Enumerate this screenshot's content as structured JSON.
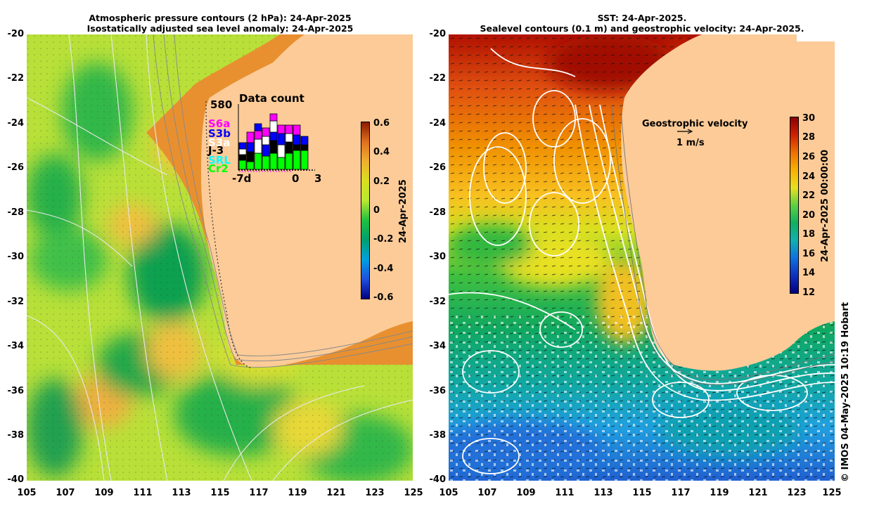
{
  "left_panel": {
    "title_line1": "Atmospheric pressure contours (2 hPa): 24-Apr-2025",
    "title_line2": "Isostatically adjusted sea level anomaly: 24-Apr-2025",
    "colorbar": {
      "ticks": [
        "0.6",
        "0.4",
        "0.2",
        "0",
        "-0.2",
        "-0.4",
        "-0.6"
      ],
      "label": "24-Apr-2025",
      "colors": [
        "#8b1a00",
        "#e07020",
        "#f0b030",
        "#d8e020",
        "#b8e830",
        "#20c040",
        "#00a070",
        "#00a0e0",
        "#2050e0",
        "#000080"
      ]
    },
    "inset": {
      "title": "Data count",
      "max_label": "580",
      "x_labels": [
        "-7d",
        "0",
        "3"
      ],
      "satellites": [
        {
          "name": "S6a",
          "color": "#ff00ff"
        },
        {
          "name": "S3b",
          "color": "#0000ff"
        },
        {
          "name": "S3a",
          "color": "#ffffff"
        },
        {
          "name": "J-3",
          "color": "#000000"
        },
        {
          "name": "SRL",
          "color": "#00ffff"
        },
        {
          "name": "Cr2",
          "color": "#00ff00"
        }
      ]
    }
  },
  "right_panel": {
    "title_line1": "SST: 24-Apr-2025.",
    "title_line2": "Sealevel contours (0.1 m) and geostrophic velocity: 24-Apr-2025.",
    "colorbar": {
      "ticks": [
        "30",
        "28",
        "26",
        "24",
        "22",
        "20",
        "18",
        "16",
        "14",
        "12"
      ],
      "label": "24-Apr-2025 00:00:00",
      "colors": [
        "#8b0000",
        "#d02000",
        "#f07000",
        "#f8b000",
        "#e8e020",
        "#60d040",
        "#10b060",
        "#10b0b0",
        "#1070e0",
        "#1030c0",
        "#000080"
      ]
    },
    "velocity_legend": {
      "title": "Geostrophic velocity",
      "scale": "1 m/s"
    }
  },
  "axes": {
    "y_ticks": [
      "-20",
      "-22",
      "-24",
      "-26",
      "-28",
      "-30",
      "-32",
      "-34",
      "-36",
      "-38",
      "-40"
    ],
    "x_ticks": [
      "105",
      "107",
      "109",
      "111",
      "113",
      "115",
      "117",
      "119",
      "121",
      "123",
      "125"
    ]
  },
  "copyright": "© IMOS 04-May-2025 10:19 Hobart",
  "colors": {
    "land": "#fccb98"
  }
}
